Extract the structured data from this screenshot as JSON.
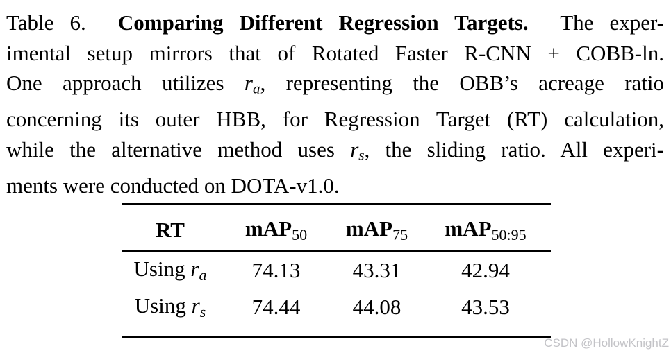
{
  "caption": {
    "lines": [
      {
        "last": false,
        "segments": [
          {
            "t": "Table 6.  "
          },
          {
            "t": "Comparing Different Regression Targets.",
            "b": true
          },
          {
            "t": "  The exper-"
          }
        ]
      },
      {
        "last": false,
        "segments": [
          {
            "t": "imental setup mirrors that of Rotated Faster R-CNN + COBB-ln."
          }
        ]
      },
      {
        "last": false,
        "segments": [
          {
            "t": "One approach utilizes "
          },
          {
            "t": "r",
            "i": true
          },
          {
            "t": "a",
            "sub": true,
            "i": true
          },
          {
            "t": ", representing the OBB’s acreage ratio"
          }
        ]
      },
      {
        "last": false,
        "segments": [
          {
            "t": "concerning its outer HBB, for Regression Target (RT) calculation,"
          }
        ]
      },
      {
        "last": false,
        "segments": [
          {
            "t": "while the alternative method uses "
          },
          {
            "t": "r",
            "i": true
          },
          {
            "t": "s",
            "sub": true,
            "i": true
          },
          {
            "t": ", the sliding ratio. All experi-"
          }
        ]
      },
      {
        "last": true,
        "segments": [
          {
            "t": "ments were conducted on DOTA-v1.0."
          }
        ]
      }
    ]
  },
  "table": {
    "col_headers": [
      {
        "main": "RT",
        "sub": ""
      },
      {
        "main": "mAP",
        "sub": "50"
      },
      {
        "main": "mAP",
        "sub": "75"
      },
      {
        "main": "mAP",
        "sub": "50:95"
      }
    ],
    "rows": [
      {
        "label_prefix": "Using ",
        "label_var": "r",
        "label_sub": "a",
        "values": [
          "74.13",
          "43.31",
          "42.94"
        ]
      },
      {
        "label_prefix": "Using ",
        "label_var": "r",
        "label_sub": "s",
        "values": [
          "74.44",
          "44.08",
          "43.53"
        ]
      }
    ]
  },
  "watermark": {
    "text": "CSDN @HollowKnightZ",
    "color": "#c3c3c7"
  }
}
